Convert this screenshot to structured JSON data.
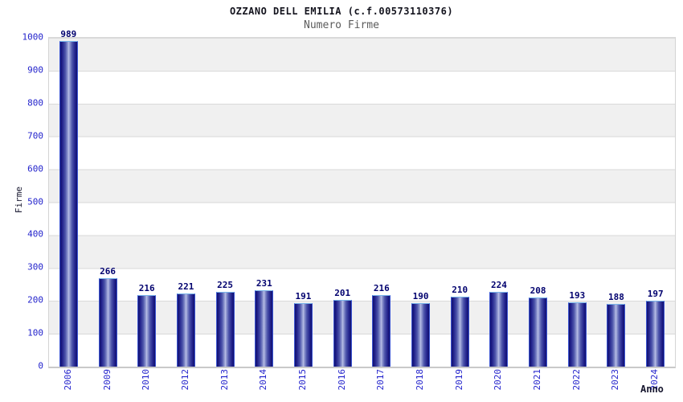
{
  "chart_data": {
    "type": "bar",
    "title": "OZZANO DELL EMILIA (c.f.00573110376)",
    "subtitle": "Numero Firme",
    "xlabel": "Anno",
    "ylabel": "Firme",
    "categories": [
      "2006",
      "2009",
      "2010",
      "2012",
      "2013",
      "2014",
      "2015",
      "2016",
      "2017",
      "2018",
      "2019",
      "2020",
      "2021",
      "2022",
      "2023",
      "2024"
    ],
    "values": [
      989,
      266,
      216,
      221,
      225,
      231,
      191,
      201,
      216,
      190,
      210,
      224,
      208,
      193,
      188,
      197
    ],
    "ylim": [
      0,
      1000
    ],
    "yticks": [
      0,
      100,
      200,
      300,
      400,
      500,
      600,
      700,
      800,
      900,
      1000
    ],
    "grid": "horizontal gridlines with alternating gray/white bands every 100 units",
    "legend": "none",
    "colors": {
      "bar_edge": "#10106f",
      "bar_center": "#bdc3e8",
      "bar_border_top": "#79b5ea",
      "bar_border_side": "#3c55d2",
      "tick_label": "#2424cc",
      "value_label": "#00006e",
      "band_gray": "#f0f0f0",
      "gridline": "#d9d9d9",
      "title_color": "#14141e",
      "subtitle_color": "#5c5c5c"
    }
  }
}
